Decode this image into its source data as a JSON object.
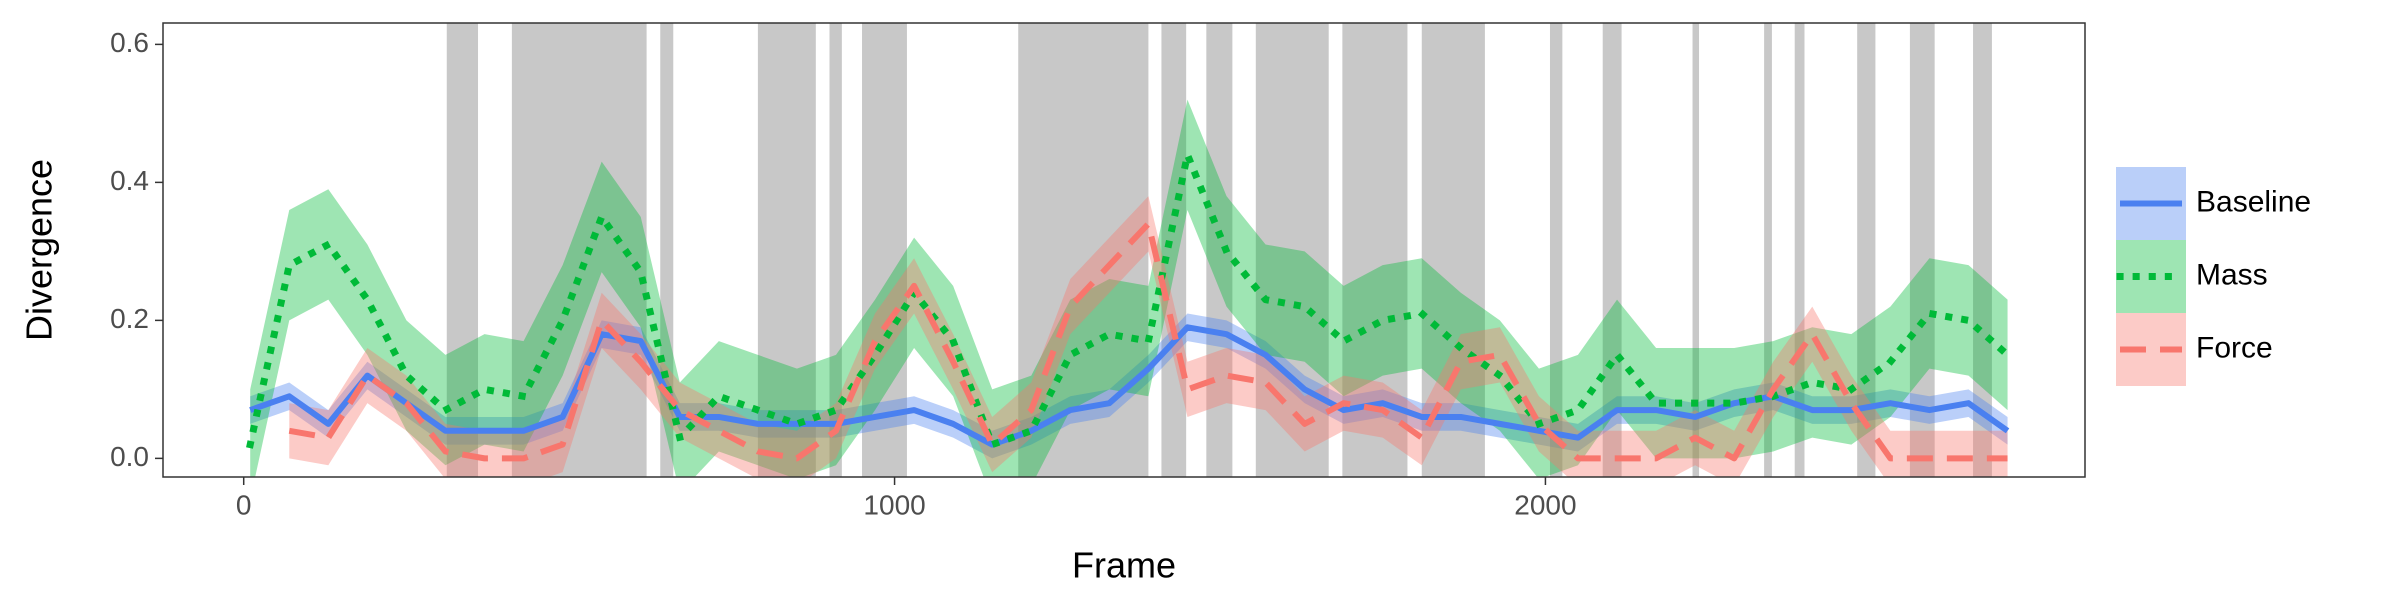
{
  "chart_data": {
    "type": "line",
    "x_label": "Frame",
    "y_label": "Divergence",
    "xlim": [
      -124,
      2829
    ],
    "ylim": [
      -0.027,
      0.631
    ],
    "xticks": [
      0,
      1000,
      2000
    ],
    "yticks": [
      {
        "value": 0,
        "label": "0.0"
      },
      0.2,
      0.4,
      0.6
    ],
    "grid": false,
    "legend": "right",
    "shade_color": "#c8c8c8",
    "shaded_regions": [
      [
        312,
        360
      ],
      [
        412,
        619
      ],
      [
        640,
        660
      ],
      [
        790,
        879
      ],
      [
        900,
        919
      ],
      [
        950,
        1019
      ],
      [
        1190,
        1390
      ],
      [
        1410,
        1448
      ],
      [
        1479,
        1519
      ],
      [
        1555,
        1667
      ],
      [
        1688,
        1788
      ],
      [
        1810,
        1907
      ],
      [
        2007,
        2026
      ],
      [
        2088,
        2117
      ],
      [
        2226,
        2236
      ],
      [
        2336,
        2348
      ],
      [
        2383,
        2398
      ],
      [
        2479,
        2507
      ],
      [
        2560,
        2598
      ],
      [
        2657,
        2686
      ]
    ],
    "x": [
      10,
      70,
      130,
      190,
      250,
      310,
      370,
      430,
      490,
      550,
      610,
      670,
      730,
      790,
      850,
      910,
      970,
      1030,
      1090,
      1150,
      1210,
      1270,
      1330,
      1390,
      1450,
      1510,
      1570,
      1630,
      1690,
      1750,
      1810,
      1870,
      1930,
      1990,
      2050,
      2110,
      2170,
      2230,
      2290,
      2350,
      2410,
      2470,
      2530,
      2590,
      2650,
      2710
    ],
    "series": [
      {
        "name": "Baseline",
        "color": "#4a80f0",
        "linestyle": "solid",
        "values": [
          0.07,
          0.09,
          0.05,
          0.12,
          0.08,
          0.04,
          0.04,
          0.04,
          0.06,
          0.18,
          0.17,
          0.06,
          0.06,
          0.05,
          0.05,
          0.05,
          0.06,
          0.07,
          0.05,
          0.02,
          0.04,
          0.07,
          0.08,
          0.13,
          0.19,
          0.18,
          0.15,
          0.1,
          0.07,
          0.08,
          0.06,
          0.06,
          0.05,
          0.04,
          0.03,
          0.07,
          0.07,
          0.06,
          0.08,
          0.09,
          0.07,
          0.07,
          0.08,
          0.07,
          0.08,
          0.04
        ],
        "lower": [
          0.05,
          0.07,
          0.03,
          0.1,
          0.06,
          0.02,
          0.02,
          0.02,
          0.04,
          0.16,
          0.15,
          0.04,
          0.04,
          0.03,
          0.03,
          0.03,
          0.04,
          0.05,
          0.03,
          0.0,
          0.02,
          0.05,
          0.06,
          0.11,
          0.17,
          0.16,
          0.13,
          0.08,
          0.05,
          0.06,
          0.04,
          0.04,
          0.03,
          0.02,
          0.01,
          0.05,
          0.05,
          0.04,
          0.06,
          0.07,
          0.05,
          0.05,
          0.06,
          0.05,
          0.06,
          0.02
        ],
        "upper": [
          0.09,
          0.11,
          0.07,
          0.14,
          0.1,
          0.06,
          0.06,
          0.06,
          0.08,
          0.2,
          0.19,
          0.08,
          0.08,
          0.07,
          0.07,
          0.07,
          0.08,
          0.09,
          0.07,
          0.04,
          0.06,
          0.09,
          0.1,
          0.15,
          0.21,
          0.2,
          0.17,
          0.12,
          0.09,
          0.1,
          0.08,
          0.08,
          0.07,
          0.06,
          0.05,
          0.09,
          0.09,
          0.08,
          0.1,
          0.11,
          0.09,
          0.09,
          0.1,
          0.09,
          0.1,
          0.06
        ]
      },
      {
        "name": "Mass",
        "color": "#00ba38",
        "linestyle": "dotted",
        "values": [
          0.02,
          0.28,
          0.31,
          0.23,
          0.12,
          0.07,
          0.1,
          0.09,
          0.2,
          0.35,
          0.27,
          0.03,
          0.09,
          0.07,
          0.05,
          0.07,
          0.15,
          0.24,
          0.17,
          0.02,
          0.04,
          0.15,
          0.18,
          0.17,
          0.44,
          0.3,
          0.23,
          0.22,
          0.17,
          0.2,
          0.21,
          0.16,
          0.12,
          0.05,
          0.07,
          0.15,
          0.08,
          0.08,
          0.08,
          0.09,
          0.11,
          0.1,
          0.14,
          0.21,
          0.2,
          0.15
        ],
        "lower": [
          -0.06,
          0.2,
          0.23,
          0.15,
          0.04,
          -0.01,
          0.02,
          0.01,
          0.12,
          0.27,
          0.19,
          -0.05,
          0.01,
          -0.01,
          -0.03,
          -0.01,
          0.07,
          0.16,
          0.09,
          -0.06,
          -0.04,
          0.07,
          0.1,
          0.09,
          0.36,
          0.22,
          0.15,
          0.14,
          0.09,
          0.12,
          0.13,
          0.08,
          0.04,
          -0.03,
          -0.01,
          0.07,
          0.0,
          0.0,
          0.0,
          0.01,
          0.03,
          0.02,
          0.06,
          0.13,
          0.12,
          0.07
        ],
        "upper": [
          0.1,
          0.36,
          0.39,
          0.31,
          0.2,
          0.15,
          0.18,
          0.17,
          0.28,
          0.43,
          0.35,
          0.11,
          0.17,
          0.15,
          0.13,
          0.15,
          0.23,
          0.32,
          0.25,
          0.1,
          0.12,
          0.23,
          0.26,
          0.25,
          0.52,
          0.38,
          0.31,
          0.3,
          0.25,
          0.28,
          0.29,
          0.24,
          0.2,
          0.13,
          0.15,
          0.23,
          0.16,
          0.16,
          0.16,
          0.17,
          0.19,
          0.18,
          0.22,
          0.29,
          0.28,
          0.23
        ]
      },
      {
        "name": "Force",
        "color": "#f8766d",
        "linestyle": "dashed",
        "values": [
          null,
          0.04,
          0.03,
          0.12,
          0.08,
          0.01,
          0.0,
          0.0,
          0.02,
          0.2,
          0.14,
          0.07,
          0.04,
          0.01,
          0.0,
          0.04,
          0.17,
          0.25,
          0.14,
          0.02,
          0.07,
          0.22,
          0.28,
          0.34,
          0.1,
          0.12,
          0.11,
          0.05,
          0.08,
          0.07,
          0.03,
          0.14,
          0.15,
          0.05,
          0.0,
          0.0,
          0.0,
          0.03,
          0.0,
          0.1,
          0.18,
          0.08,
          0.0,
          0.0,
          0.0,
          0.0
        ],
        "lower": [
          null,
          0.0,
          -0.01,
          0.08,
          0.04,
          -0.03,
          -0.04,
          -0.04,
          -0.02,
          0.16,
          0.1,
          0.03,
          0.0,
          -0.03,
          -0.04,
          0.0,
          0.13,
          0.21,
          0.1,
          -0.02,
          0.03,
          0.18,
          0.24,
          0.3,
          0.06,
          0.08,
          0.07,
          0.01,
          0.04,
          0.03,
          -0.01,
          0.1,
          0.11,
          0.01,
          -0.04,
          -0.04,
          -0.04,
          -0.01,
          -0.04,
          0.06,
          0.14,
          0.04,
          -0.04,
          -0.04,
          -0.04,
          -0.04
        ],
        "upper": [
          null,
          0.08,
          0.07,
          0.16,
          0.12,
          0.05,
          0.04,
          0.04,
          0.06,
          0.24,
          0.18,
          0.11,
          0.08,
          0.05,
          0.04,
          0.08,
          0.21,
          0.29,
          0.18,
          0.06,
          0.11,
          0.26,
          0.32,
          0.38,
          0.14,
          0.16,
          0.15,
          0.09,
          0.12,
          0.11,
          0.07,
          0.18,
          0.19,
          0.09,
          0.04,
          0.04,
          0.04,
          0.07,
          0.04,
          0.14,
          0.22,
          0.12,
          0.04,
          0.04,
          0.04,
          0.04
        ]
      }
    ]
  }
}
